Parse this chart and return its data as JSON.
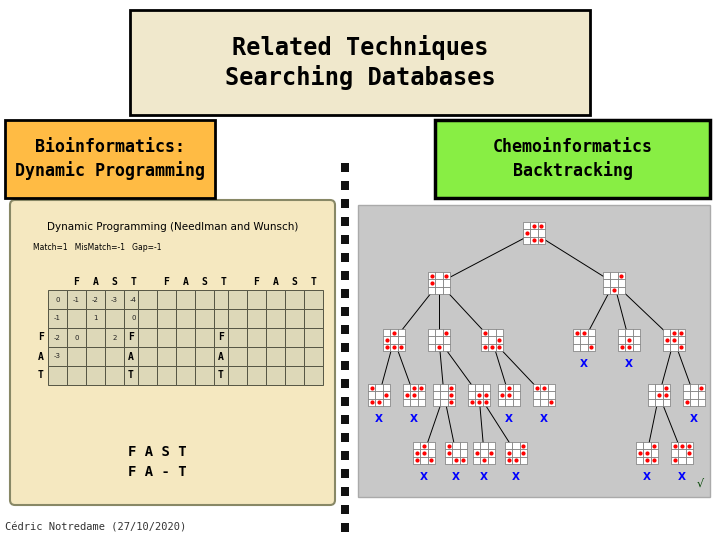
{
  "title_text": "Related Techniques\nSearching Databases",
  "title_box_color": "#f0e8cc",
  "title_text_color": "#000000",
  "left_box_text": "Bioinformatics:\nDynamic Programming",
  "left_box_bg": "#ffbb44",
  "left_box_border": "#000000",
  "right_box_text": "Chemoinformatics\nBacktracking",
  "right_box_bg": "#88ee44",
  "right_box_border": "#000000",
  "footer_text": "Cédric Notredame (27/10/2020)",
  "bg_color": "#ffffff",
  "left_image_bg": "#f5e8c0",
  "right_image_bg": "#c8c8c8",
  "divider_color": "#111111"
}
